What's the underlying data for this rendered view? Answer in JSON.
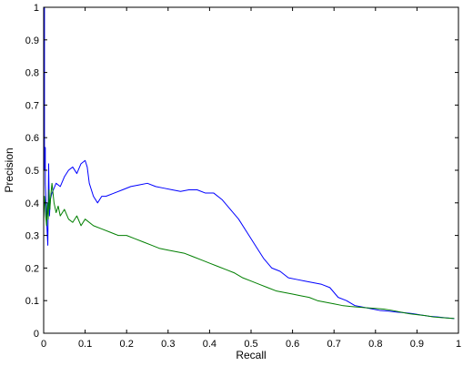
{
  "chart_data": {
    "type": "line",
    "xlabel": "Recall",
    "ylabel": "Precision",
    "xlim": [
      0,
      1
    ],
    "ylim": [
      0,
      1
    ],
    "xticks": [
      "0",
      "0.1",
      "0.2",
      "0.3",
      "0.4",
      "0.5",
      "0.6",
      "0.7",
      "0.8",
      "0.9",
      "1"
    ],
    "yticks": [
      "0",
      "0.1",
      "0.2",
      "0.3",
      "0.4",
      "0.5",
      "0.6",
      "0.7",
      "0.8",
      "0.9",
      "1"
    ],
    "grid": false,
    "series": [
      {
        "color": "#0000ff",
        "x": [
          0.0,
          0.0,
          0.002,
          0.002,
          0.004,
          0.004,
          0.007,
          0.01,
          0.012,
          0.014,
          0.016,
          0.02,
          0.03,
          0.04,
          0.05,
          0.06,
          0.07,
          0.08,
          0.09,
          0.1,
          0.105,
          0.11,
          0.12,
          0.13,
          0.14,
          0.15,
          0.17,
          0.19,
          0.21,
          0.23,
          0.25,
          0.27,
          0.29,
          0.31,
          0.33,
          0.35,
          0.37,
          0.39,
          0.41,
          0.43,
          0.45,
          0.47,
          0.49,
          0.51,
          0.53,
          0.55,
          0.57,
          0.59,
          0.61,
          0.63,
          0.65,
          0.67,
          0.69,
          0.71,
          0.73,
          0.75,
          0.77,
          0.79,
          0.81,
          0.83,
          0.85,
          0.87,
          0.89,
          0.91,
          0.93,
          0.95,
          0.97,
          0.99
        ],
        "y": [
          0.0,
          1.0,
          1.0,
          0.5,
          0.57,
          0.46,
          0.35,
          0.27,
          0.52,
          0.36,
          0.41,
          0.43,
          0.46,
          0.45,
          0.48,
          0.5,
          0.51,
          0.49,
          0.52,
          0.53,
          0.51,
          0.46,
          0.42,
          0.4,
          0.42,
          0.42,
          0.43,
          0.44,
          0.45,
          0.455,
          0.46,
          0.45,
          0.445,
          0.44,
          0.435,
          0.44,
          0.44,
          0.43,
          0.43,
          0.41,
          0.38,
          0.35,
          0.31,
          0.27,
          0.23,
          0.2,
          0.19,
          0.17,
          0.165,
          0.16,
          0.155,
          0.15,
          0.14,
          0.11,
          0.1,
          0.085,
          0.08,
          0.075,
          0.07,
          0.068,
          0.065,
          0.063,
          0.06,
          0.056,
          0.052,
          0.05,
          0.047,
          0.045
        ]
      },
      {
        "color": "#007f00",
        "x": [
          0.0,
          0.0,
          0.002,
          0.004,
          0.005,
          0.007,
          0.009,
          0.011,
          0.013,
          0.015,
          0.017,
          0.02,
          0.025,
          0.03,
          0.035,
          0.04,
          0.05,
          0.06,
          0.07,
          0.08,
          0.09,
          0.1,
          0.12,
          0.14,
          0.16,
          0.18,
          0.2,
          0.22,
          0.24,
          0.26,
          0.28,
          0.3,
          0.32,
          0.34,
          0.36,
          0.38,
          0.4,
          0.42,
          0.44,
          0.46,
          0.48,
          0.5,
          0.52,
          0.54,
          0.56,
          0.58,
          0.6,
          0.62,
          0.64,
          0.66,
          0.68,
          0.7,
          0.72,
          0.74,
          0.76,
          0.78,
          0.8,
          0.82,
          0.84,
          0.86,
          0.88,
          0.9,
          0.92,
          0.94,
          0.96,
          0.98,
          0.99
        ],
        "y": [
          0.0,
          0.34,
          0.42,
          0.39,
          0.36,
          0.33,
          0.4,
          0.35,
          0.44,
          0.38,
          0.42,
          0.46,
          0.4,
          0.37,
          0.39,
          0.36,
          0.38,
          0.35,
          0.34,
          0.36,
          0.33,
          0.35,
          0.33,
          0.32,
          0.31,
          0.3,
          0.3,
          0.29,
          0.28,
          0.27,
          0.26,
          0.255,
          0.25,
          0.245,
          0.235,
          0.225,
          0.215,
          0.205,
          0.195,
          0.185,
          0.17,
          0.16,
          0.15,
          0.14,
          0.13,
          0.125,
          0.12,
          0.115,
          0.11,
          0.1,
          0.095,
          0.09,
          0.085,
          0.082,
          0.08,
          0.078,
          0.076,
          0.074,
          0.07,
          0.065,
          0.06,
          0.057,
          0.054,
          0.05,
          0.048,
          0.046,
          0.045
        ]
      }
    ]
  }
}
